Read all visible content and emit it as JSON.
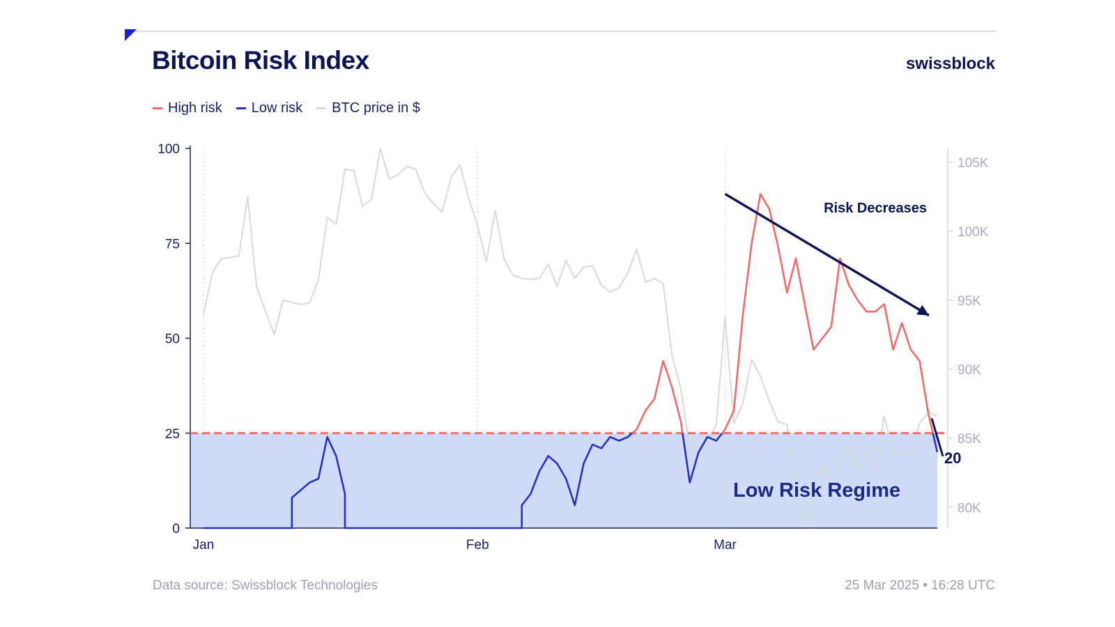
{
  "header": {
    "title": "Bitcoin Risk Index",
    "brand": "swissblock"
  },
  "legend": [
    {
      "label": "High risk",
      "color": "#f06a6a"
    },
    {
      "label": "Low risk",
      "color": "#2630c9"
    },
    {
      "label": "BTC price in $",
      "color": "#d9dbe2"
    }
  ],
  "footer": {
    "source": "Data source: Swissblock Technologies",
    "timestamp": "25 Mar 2025 • 16:28 UTC"
  },
  "chart_data": {
    "type": "line",
    "title": "Bitcoin Risk Index",
    "x_ticks": [
      "Jan",
      "Feb",
      "Mar"
    ],
    "x_tick_dates": [
      "2025-01-01",
      "2025-02-01",
      "2025-03-01"
    ],
    "y_left": {
      "ticks": [
        0,
        25,
        50,
        75,
        100
      ],
      "ylim": [
        0,
        100
      ]
    },
    "y_right": {
      "tick_labels": [
        "80K",
        "85K",
        "90K",
        "95K",
        "100K",
        "105K"
      ],
      "tick_values": [
        80000,
        85000,
        90000,
        95000,
        100000,
        105000
      ],
      "ylim": [
        78500,
        106000
      ]
    },
    "threshold": {
      "value": 25,
      "color": "#f06a6a",
      "style": "dashed"
    },
    "low_risk_region": {
      "from": 0,
      "to": 25,
      "label": "Low Risk Regime",
      "color": "#cfdbf7"
    },
    "annotation_arrow": {
      "label": "Risk Decreases",
      "from": {
        "date": "2025-03-01",
        "value": 88
      },
      "to": {
        "date": "2025-03-25",
        "value": 56
      }
    },
    "last_value": {
      "date": "2025-03-25",
      "value": 20,
      "label": "20"
    },
    "series": [
      {
        "name": "Risk index",
        "axis": "left",
        "high_color": "#f06a6a",
        "low_color": "#2630c9",
        "points": [
          [
            "2025-01-01",
            0
          ],
          [
            "2025-01-11",
            0
          ],
          [
            "2025-01-11",
            8
          ],
          [
            "2025-01-12",
            10
          ],
          [
            "2025-01-13",
            12
          ],
          [
            "2025-01-14",
            13
          ],
          [
            "2025-01-15",
            24
          ],
          [
            "2025-01-16",
            19
          ],
          [
            "2025-01-17",
            9
          ],
          [
            "2025-01-17",
            0
          ],
          [
            "2025-02-06",
            0
          ],
          [
            "2025-02-06",
            6
          ],
          [
            "2025-02-07",
            9
          ],
          [
            "2025-02-08",
            15
          ],
          [
            "2025-02-09",
            19
          ],
          [
            "2025-02-10",
            17
          ],
          [
            "2025-02-11",
            13
          ],
          [
            "2025-02-12",
            6
          ],
          [
            "2025-02-13",
            17
          ],
          [
            "2025-02-14",
            22
          ],
          [
            "2025-02-15",
            21
          ],
          [
            "2025-02-16",
            24
          ],
          [
            "2025-02-17",
            23
          ],
          [
            "2025-02-18",
            24
          ],
          [
            "2025-02-19",
            26
          ],
          [
            "2025-02-20",
            31
          ],
          [
            "2025-02-21",
            34
          ],
          [
            "2025-02-22",
            44
          ],
          [
            "2025-02-23",
            37
          ],
          [
            "2025-02-24",
            28
          ],
          [
            "2025-02-25",
            12
          ],
          [
            "2025-02-26",
            20
          ],
          [
            "2025-02-27",
            24
          ],
          [
            "2025-02-28",
            23
          ],
          [
            "2025-03-01",
            26
          ],
          [
            "2025-03-02",
            31
          ],
          [
            "2025-03-03",
            56
          ],
          [
            "2025-03-04",
            75
          ],
          [
            "2025-03-05",
            88
          ],
          [
            "2025-03-06",
            84
          ],
          [
            "2025-03-07",
            74
          ],
          [
            "2025-03-08",
            62
          ],
          [
            "2025-03-09",
            71
          ],
          [
            "2025-03-10",
            59
          ],
          [
            "2025-03-11",
            47
          ],
          [
            "2025-03-12",
            50
          ],
          [
            "2025-03-13",
            53
          ],
          [
            "2025-03-14",
            71
          ],
          [
            "2025-03-15",
            64
          ],
          [
            "2025-03-16",
            60
          ],
          [
            "2025-03-17",
            57
          ],
          [
            "2025-03-18",
            57
          ],
          [
            "2025-03-19",
            59
          ],
          [
            "2025-03-20",
            47
          ],
          [
            "2025-03-21",
            54
          ],
          [
            "2025-03-22",
            47
          ],
          [
            "2025-03-23",
            44
          ],
          [
            "2025-03-24",
            30
          ],
          [
            "2025-03-25",
            20
          ]
        ]
      },
      {
        "name": "BTC price in $",
        "axis": "right",
        "color": "#d9dbe2",
        "points": [
          [
            "2025-01-01",
            94000
          ],
          [
            "2025-01-02",
            97000
          ],
          [
            "2025-01-03",
            98000
          ],
          [
            "2025-01-05",
            98200
          ],
          [
            "2025-01-06",
            102500
          ],
          [
            "2025-01-07",
            96000
          ],
          [
            "2025-01-09",
            92500
          ],
          [
            "2025-01-10",
            95000
          ],
          [
            "2025-01-12",
            94700
          ],
          [
            "2025-01-13",
            94800
          ],
          [
            "2025-01-14",
            96500
          ],
          [
            "2025-01-15",
            101000
          ],
          [
            "2025-01-16",
            100500
          ],
          [
            "2025-01-17",
            104500
          ],
          [
            "2025-01-18",
            104400
          ],
          [
            "2025-01-19",
            101800
          ],
          [
            "2025-01-20",
            102300
          ],
          [
            "2025-01-21",
            106000
          ],
          [
            "2025-01-22",
            103800
          ],
          [
            "2025-01-23",
            104100
          ],
          [
            "2025-01-24",
            104700
          ],
          [
            "2025-01-25",
            104500
          ],
          [
            "2025-01-26",
            102800
          ],
          [
            "2025-01-27",
            102000
          ],
          [
            "2025-01-28",
            101400
          ],
          [
            "2025-01-29",
            103900
          ],
          [
            "2025-01-30",
            104800
          ],
          [
            "2025-01-31",
            102400
          ],
          [
            "2025-02-01",
            100400
          ],
          [
            "2025-02-02",
            97800
          ],
          [
            "2025-02-03",
            101500
          ],
          [
            "2025-02-04",
            98000
          ],
          [
            "2025-02-05",
            96800
          ],
          [
            "2025-02-06",
            96600
          ],
          [
            "2025-02-07",
            96500
          ],
          [
            "2025-02-08",
            96600
          ],
          [
            "2025-02-09",
            97600
          ],
          [
            "2025-02-10",
            96000
          ],
          [
            "2025-02-11",
            97900
          ],
          [
            "2025-02-12",
            96600
          ],
          [
            "2025-02-13",
            97400
          ],
          [
            "2025-02-14",
            97500
          ],
          [
            "2025-02-15",
            96100
          ],
          [
            "2025-02-16",
            95600
          ],
          [
            "2025-02-17",
            95900
          ],
          [
            "2025-02-18",
            97000
          ],
          [
            "2025-02-19",
            98700
          ],
          [
            "2025-02-20",
            96300
          ],
          [
            "2025-02-21",
            96600
          ],
          [
            "2025-02-22",
            96200
          ],
          [
            "2025-02-23",
            91000
          ],
          [
            "2025-02-24",
            88600
          ],
          [
            "2025-02-25",
            84300
          ],
          [
            "2025-02-26",
            84200
          ],
          [
            "2025-02-27",
            84700
          ],
          [
            "2025-02-28",
            86000
          ],
          [
            "2025-03-01",
            93800
          ],
          [
            "2025-03-02",
            86100
          ],
          [
            "2025-03-03",
            87500
          ],
          [
            "2025-03-04",
            90700
          ],
          [
            "2025-03-05",
            89500
          ],
          [
            "2025-03-06",
            87700
          ],
          [
            "2025-03-07",
            86200
          ],
          [
            "2025-03-08",
            86000
          ],
          [
            "2025-03-09",
            80500
          ],
          [
            "2025-03-10",
            78700
          ],
          [
            "2025-03-11",
            82100
          ],
          [
            "2025-03-12",
            83000
          ],
          [
            "2025-03-13",
            81200
          ],
          [
            "2025-03-14",
            83900
          ],
          [
            "2025-03-15",
            84300
          ],
          [
            "2025-03-16",
            82700
          ],
          [
            "2025-03-17",
            84200
          ],
          [
            "2025-03-18",
            82800
          ],
          [
            "2025-03-19",
            86600
          ],
          [
            "2025-03-20",
            84100
          ],
          [
            "2025-03-21",
            84000
          ],
          [
            "2025-03-22",
            83900
          ],
          [
            "2025-03-23",
            86100
          ],
          [
            "2025-03-24",
            86900
          ],
          [
            "2025-03-25",
            86600
          ]
        ]
      }
    ]
  }
}
